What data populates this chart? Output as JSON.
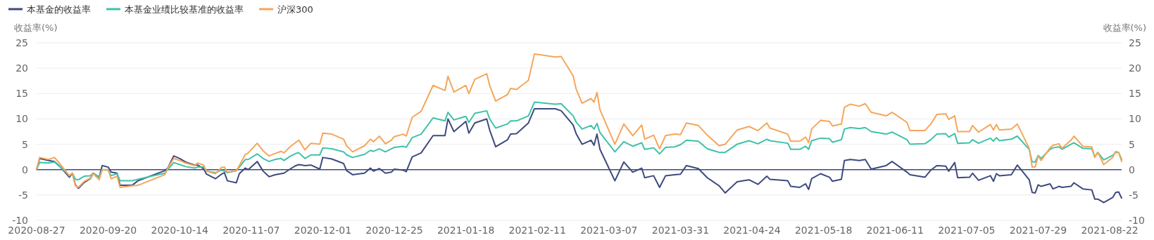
{
  "chart_data": {
    "type": "line",
    "ylabel": "收益率(%)",
    "y2label": "收益率(%)",
    "legend": "top left",
    "grid": "y",
    "x": [
      "2020-08-27",
      "2020-08-28",
      "2020-08-31",
      "2020-09-02",
      "2020-09-04",
      "2020-09-07",
      "2020-09-08",
      "2020-09-09",
      "2020-09-10",
      "2020-09-12",
      "2020-09-14",
      "2020-09-15",
      "2020-09-17",
      "2020-09-18",
      "2020-09-20",
      "2020-09-21",
      "2020-09-23",
      "2020-09-24",
      "2020-09-28",
      "2020-09-30",
      "2020-10-09",
      "2020-10-10",
      "2020-10-12",
      "2020-10-14",
      "2020-10-16",
      "2020-10-19",
      "2020-10-20",
      "2020-10-22",
      "2020-10-23",
      "2020-10-26",
      "2020-10-28",
      "2020-10-29",
      "2020-10-30",
      "2020-11-02",
      "2020-11-03",
      "2020-11-05",
      "2020-11-06",
      "2020-11-09",
      "2020-11-11",
      "2020-11-13",
      "2020-11-15",
      "2020-11-17",
      "2020-11-18",
      "2020-11-20",
      "2020-11-22",
      "2020-11-23",
      "2020-11-25",
      "2020-11-27",
      "2020-11-30",
      "2020-12-01",
      "2020-12-04",
      "2020-12-08",
      "2020-12-09",
      "2020-12-11",
      "2020-12-15",
      "2020-12-17",
      "2020-12-18",
      "2020-12-20",
      "2020-12-22",
      "2020-12-24",
      "2020-12-25",
      "2020-12-28",
      "2020-12-29",
      "2020-12-31",
      "2021-01-03",
      "2021-01-07",
      "2021-01-11",
      "2021-01-12",
      "2021-01-14",
      "2021-01-18",
      "2021-01-19",
      "2021-01-21",
      "2021-01-25",
      "2021-01-26",
      "2021-01-28",
      "2021-02-01",
      "2021-02-02",
      "2021-02-04",
      "2021-02-08",
      "2021-02-10",
      "2021-02-17",
      "2021-02-19",
      "2021-02-23",
      "2021-02-24",
      "2021-02-26",
      "2021-03-01",
      "2021-03-02",
      "2021-03-03",
      "2021-03-04",
      "2021-03-09",
      "2021-03-12",
      "2021-03-15",
      "2021-03-18",
      "2021-03-19",
      "2021-03-22",
      "2021-03-24",
      "2021-03-26",
      "2021-03-29",
      "2021-03-31",
      "2021-04-02",
      "2021-04-06",
      "2021-04-09",
      "2021-04-13",
      "2021-04-15",
      "2021-04-19",
      "2021-04-23",
      "2021-04-26",
      "2021-04-29",
      "2021-04-30",
      "2021-05-06",
      "2021-05-07",
      "2021-05-10",
      "2021-05-12",
      "2021-05-13",
      "2021-05-14",
      "2021-05-17",
      "2021-05-20",
      "2021-05-21",
      "2021-05-24",
      "2021-05-25",
      "2021-05-27",
      "2021-05-30",
      "2021-06-01",
      "2021-06-03",
      "2021-06-08",
      "2021-06-10",
      "2021-06-15",
      "2021-06-16",
      "2021-06-21",
      "2021-06-23",
      "2021-06-25",
      "2021-06-28",
      "2021-06-29",
      "2021-07-01",
      "2021-07-02",
      "2021-07-06",
      "2021-07-07",
      "2021-07-09",
      "2021-07-13",
      "2021-07-14",
      "2021-07-15",
      "2021-07-16",
      "2021-07-20",
      "2021-07-22",
      "2021-07-26",
      "2021-07-27",
      "2021-07-28",
      "2021-07-29",
      "2021-07-30",
      "2021-08-02",
      "2021-08-03",
      "2021-08-05",
      "2021-08-06",
      "2021-08-09",
      "2021-08-10",
      "2021-08-13",
      "2021-08-16",
      "2021-08-17",
      "2021-08-18",
      "2021-08-20",
      "2021-08-23",
      "2021-08-24",
      "2021-08-25",
      "2021-08-26"
    ],
    "series": [
      {
        "name": "本基金的收益率",
        "color": "#3e4a7e",
        "values": [
          0,
          2.2,
          1.8,
          1.6,
          0.5,
          -1.5,
          -0.7,
          -3.0,
          -3.7,
          -2.5,
          -1.8,
          -0.7,
          -1.5,
          0.8,
          0.5,
          -0.5,
          -0.7,
          -3.1,
          -3.1,
          -2.2,
          -0.2,
          0.3,
          2.7,
          2.2,
          1.5,
          0.9,
          0.9,
          0.2,
          -0.9,
          -1.8,
          -0.9,
          -0.6,
          -2.2,
          -2.6,
          -0.8,
          0.3,
          0.0,
          1.6,
          -0.3,
          -1.4,
          -1.0,
          -0.8,
          -0.7,
          0.1,
          0.8,
          1.0,
          0.8,
          0.9,
          0.1,
          2.4,
          2.1,
          1.2,
          -0.2,
          -1.0,
          -0.7,
          0.3,
          -0.3,
          0.2,
          -0.7,
          -0.5,
          0.1,
          -0.1,
          -0.4,
          2.5,
          3.3,
          6.7,
          6.7,
          10.0,
          7.5,
          9.5,
          7.2,
          9.2,
          10.0,
          7.8,
          4.5,
          5.9,
          7.0,
          7.1,
          9.2,
          12.0,
          12.0,
          11.6,
          8.8,
          7.1,
          5.0,
          5.8,
          4.8,
          7.0,
          4.0,
          -2.2,
          1.5,
          -0.5,
          0.3,
          -1.6,
          -1.2,
          -3.5,
          -1.2,
          -1.0,
          -0.9,
          0.8,
          0.2,
          -1.6,
          -3.2,
          -4.6,
          -2.4,
          -2.0,
          -2.9,
          -1.3,
          -1.9,
          -2.2,
          -3.3,
          -3.5,
          -2.8,
          -3.9,
          -1.8,
          -0.8,
          -1.5,
          -2.3,
          -1.9,
          1.8,
          2.0,
          1.8,
          2.0,
          0.1,
          0.8,
          1.6,
          -0.5,
          -1.0,
          -1.5,
          -0.1,
          0.8,
          0.7,
          -0.3,
          1.4,
          -1.6,
          -1.5,
          -0.7,
          -2.1,
          -1.2,
          -2.3,
          -0.8,
          -1.2,
          -1.0,
          0.9,
          -2.0,
          -4.5,
          -4.6,
          -3.0,
          -3.3,
          -2.8,
          -3.8,
          -3.3,
          -3.5,
          -3.3,
          -2.6,
          -3.8,
          -4.0,
          -5.8,
          -5.8,
          -6.5,
          -5.5,
          -4.5,
          -4.4,
          -5.6
        ]
      },
      {
        "name": "本基金业绩比较基准的收益率",
        "color": "#3fc2a8",
        "values": [
          0,
          1.4,
          1.3,
          1.5,
          0.5,
          -1.2,
          -0.7,
          -1.9,
          -2.0,
          -1.3,
          -1.2,
          -0.7,
          -1.5,
          0,
          -0.1,
          -1.2,
          -0.8,
          -2.2,
          -2.2,
          -1.9,
          -0.7,
          0,
          1.4,
          1.0,
          0.6,
          0.3,
          0.5,
          0.5,
          -0.3,
          -0.6,
          -0.1,
          -0.3,
          -0.6,
          -0.2,
          0.5,
          2.0,
          2.0,
          3.1,
          2.2,
          1.6,
          2.0,
          2.2,
          1.8,
          2.6,
          3.2,
          3.3,
          2.2,
          2.9,
          2.9,
          4.3,
          4.1,
          3.5,
          2.9,
          2.4,
          3.0,
          3.8,
          3.6,
          4.1,
          3.5,
          4.1,
          4.4,
          4.6,
          4.4,
          6.3,
          7.0,
          10.2,
          9.6,
          11.3,
          9.8,
          10.5,
          9.3,
          11.1,
          11.6,
          10.0,
          8.2,
          9.0,
          9.6,
          9.6,
          10.6,
          13.3,
          12.9,
          13.0,
          10.6,
          9.4,
          8.0,
          8.7,
          8.0,
          9.1,
          7.3,
          3.5,
          5.5,
          4.6,
          5.3,
          4.0,
          4.3,
          3.1,
          4.4,
          4.5,
          4.9,
          5.8,
          5.6,
          4.1,
          3.4,
          3.4,
          5.0,
          5.7,
          5.1,
          6.0,
          5.7,
          5.2,
          4.0,
          4.0,
          4.6,
          4.0,
          5.7,
          6.2,
          6.1,
          5.4,
          5.9,
          8.0,
          8.3,
          8.1,
          8.3,
          7.5,
          7.0,
          7.4,
          5.9,
          5.0,
          5.1,
          5.9,
          7.0,
          7.1,
          6.4,
          7.1,
          5.2,
          5.3,
          5.9,
          5.2,
          6.2,
          5.6,
          6.3,
          5.7,
          6.0,
          6.6,
          4.0,
          1.5,
          1.5,
          2.8,
          2.2,
          4.0,
          4.3,
          4.5,
          4.0,
          5.0,
          5.3,
          4.2,
          4.1,
          2.5,
          3.4,
          1.9,
          2.8,
          3.4,
          3.4,
          2.0
        ]
      },
      {
        "name": "沪深300",
        "color": "#f5a65a",
        "values": [
          0,
          2.4,
          2.0,
          2.4,
          1.0,
          -1.2,
          -0.7,
          -3.2,
          -3.5,
          -2.3,
          -1.7,
          -0.8,
          -2.0,
          0,
          0.0,
          -1.8,
          -1.3,
          -3.5,
          -3.2,
          -3.1,
          -1.0,
          0.3,
          2.2,
          1.8,
          1.3,
          0.8,
          1.3,
          0.9,
          -0.3,
          -0.8,
          0.4,
          0.5,
          -0.5,
          -0.2,
          0.8,
          3.0,
          3.3,
          5.2,
          3.7,
          2.7,
          3.2,
          3.6,
          3.3,
          4.5,
          5.4,
          5.8,
          3.9,
          5.2,
          5.0,
          7.2,
          7.0,
          6.0,
          4.7,
          3.5,
          4.7,
          6.0,
          5.5,
          6.6,
          5.1,
          5.8,
          6.5,
          7.0,
          6.6,
          10.3,
          11.5,
          16.6,
          15.6,
          18.4,
          15.3,
          16.6,
          15.0,
          17.8,
          18.9,
          16.6,
          13.5,
          14.8,
          16.0,
          15.8,
          17.6,
          22.8,
          22.2,
          22.3,
          18.5,
          15.9,
          13.1,
          14.0,
          13.3,
          15.2,
          11.8,
          5.0,
          9.0,
          6.7,
          8.8,
          6.0,
          6.8,
          4.1,
          6.7,
          7.0,
          6.9,
          9.2,
          8.7,
          6.8,
          4.7,
          5.0,
          7.8,
          8.5,
          7.7,
          9.2,
          8.2,
          7.0,
          5.6,
          5.6,
          6.4,
          5.3,
          8.0,
          9.7,
          9.5,
          8.6,
          9.0,
          12.3,
          12.9,
          12.5,
          13.0,
          11.3,
          10.6,
          11.3,
          9.3,
          7.7,
          7.7,
          9.0,
          10.9,
          11.0,
          9.9,
          10.6,
          7.5,
          7.5,
          8.7,
          7.4,
          8.9,
          7.8,
          8.9,
          7.8,
          8.0,
          9.0,
          4.2,
          0.5,
          0.5,
          2.7,
          1.8,
          4.3,
          4.8,
          5.1,
          4.2,
          5.8,
          6.6,
          4.6,
          4.5,
          2.4,
          3.4,
          1.0,
          2.4,
          3.6,
          3.4,
          1.6
        ]
      }
    ],
    "xlim": [
      "2020-08-27",
      "2021-08-26"
    ],
    "xticks": [
      "2020-08-27",
      "2020-09-20",
      "2020-10-14",
      "2020-11-07",
      "2020-12-01",
      "2020-12-25",
      "2021-01-18",
      "2021-02-11",
      "2021-03-07",
      "2021-03-31",
      "2021-04-24",
      "2021-05-18",
      "2021-06-11",
      "2021-07-05",
      "2021-07-29",
      "2021-08-22"
    ],
    "ref_lines": [
      {
        "axis": "y",
        "value": 0,
        "color": "#3e4a7e"
      }
    ],
    "ylim": [
      -10,
      25
    ],
    "yticks": [
      -10,
      -5,
      0,
      5,
      10,
      15,
      20,
      25
    ],
    "y2lim": [
      -10,
      25
    ],
    "y2ticks": [
      -10,
      -5,
      0,
      5,
      10,
      15,
      20,
      25
    ]
  }
}
